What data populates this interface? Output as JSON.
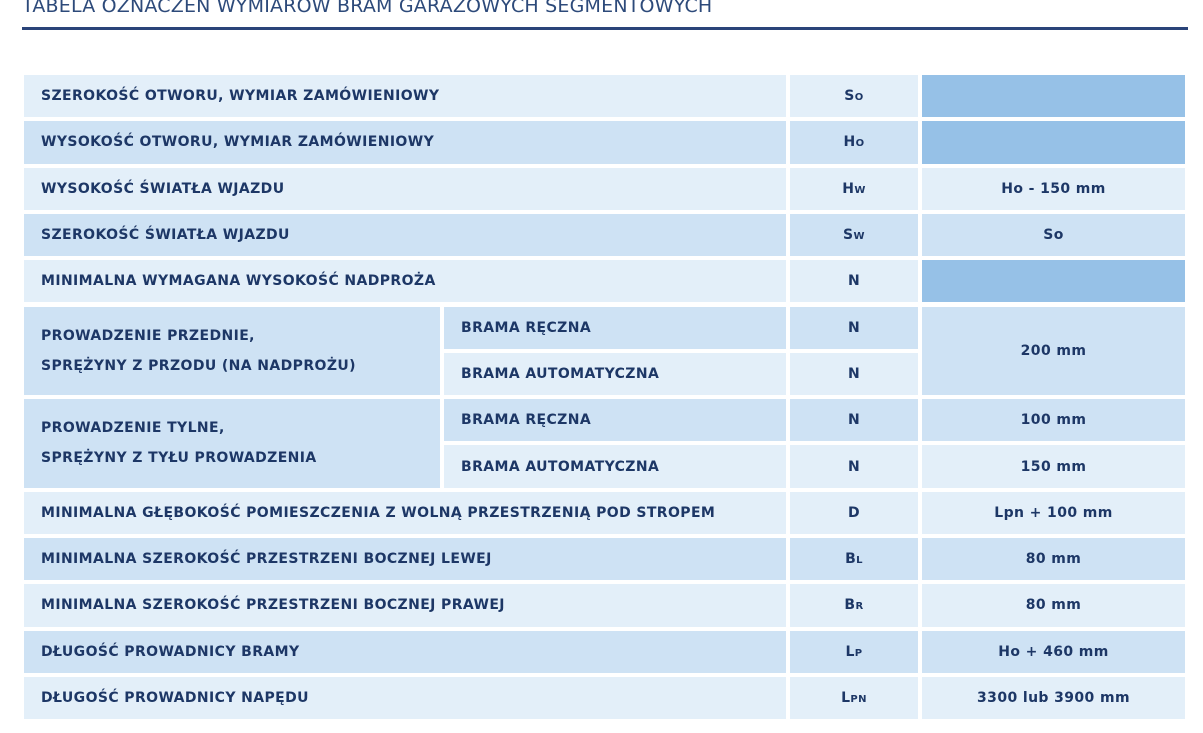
{
  "title": "TABELA OZNACZEŃ WYMIARÓW BRAM GARAŻOWYCH SEGMENTOWYCH",
  "table": {
    "rows": [
      {
        "label": "SZEROKOŚĆ OTWORU, WYMIAR ZAMÓWIENIOWY",
        "symbol": "So"
      },
      {
        "label": "WYSOKOŚĆ OTWORU, WYMIAR ZAMÓWIENIOWY",
        "symbol": "Ho"
      },
      {
        "label": "WYSOKOŚĆ ŚWIATŁA WJAZDU",
        "symbol": "Hw",
        "value": "Ho - 150 mm"
      },
      {
        "label": "SZEROKOŚĆ ŚWIATŁA WJAZDU",
        "symbol": "Sw",
        "value": "So"
      },
      {
        "label": "MINIMALNA WYMAGANA WYSOKOŚĆ NADPROŻA",
        "symbol": "N"
      },
      {
        "label": [
          "PROWADZENIE PRZEDNIE,",
          "SPRĘŻYNY Z PRZODU (NA NADPROŻU)"
        ],
        "sub": [
          {
            "label": "BRAMA RĘCZNA",
            "symbol": "N"
          },
          {
            "label": "BRAMA AUTOMATYCZNA",
            "symbol": "N"
          }
        ],
        "value": "200 mm"
      },
      {
        "label": [
          "PROWADZENIE TYLNE,",
          "SPRĘŻYNY Z TYŁU PROWADZENIA"
        ],
        "sub": [
          {
            "label": "BRAMA RĘCZNA",
            "symbol": "N",
            "value": "100 mm"
          },
          {
            "label": "BRAMA AUTOMATYCZNA",
            "symbol": "N",
            "value": "150 mm"
          }
        ]
      },
      {
        "label": "MINIMALNA GŁĘBOKOŚĆ POMIESZCZENIA Z WOLNĄ PRZESTRZENIĄ POD STROPEM",
        "symbol": "D",
        "value": "Lpn + 100 mm"
      },
      {
        "label": "MINIMALNA SZEROKOŚĆ PRZESTRZENI BOCZNEJ LEWEJ",
        "symbol": "Bl",
        "value": "80 mm"
      },
      {
        "label": "MINIMALNA SZEROKOŚĆ PRZESTRZENI BOCZNEJ PRAWEJ",
        "symbol": "Br",
        "value": "80 mm"
      },
      {
        "label": "DŁUGOŚĆ PROWADNICY BRAMY",
        "symbol": "Lp",
        "value": "Ho + 460 mm"
      },
      {
        "label": "DŁUGOŚĆ PROWADNICY NAPĘDU",
        "symbol": "Lpn",
        "value": "3300 lub 3900 mm"
      }
    ]
  }
}
